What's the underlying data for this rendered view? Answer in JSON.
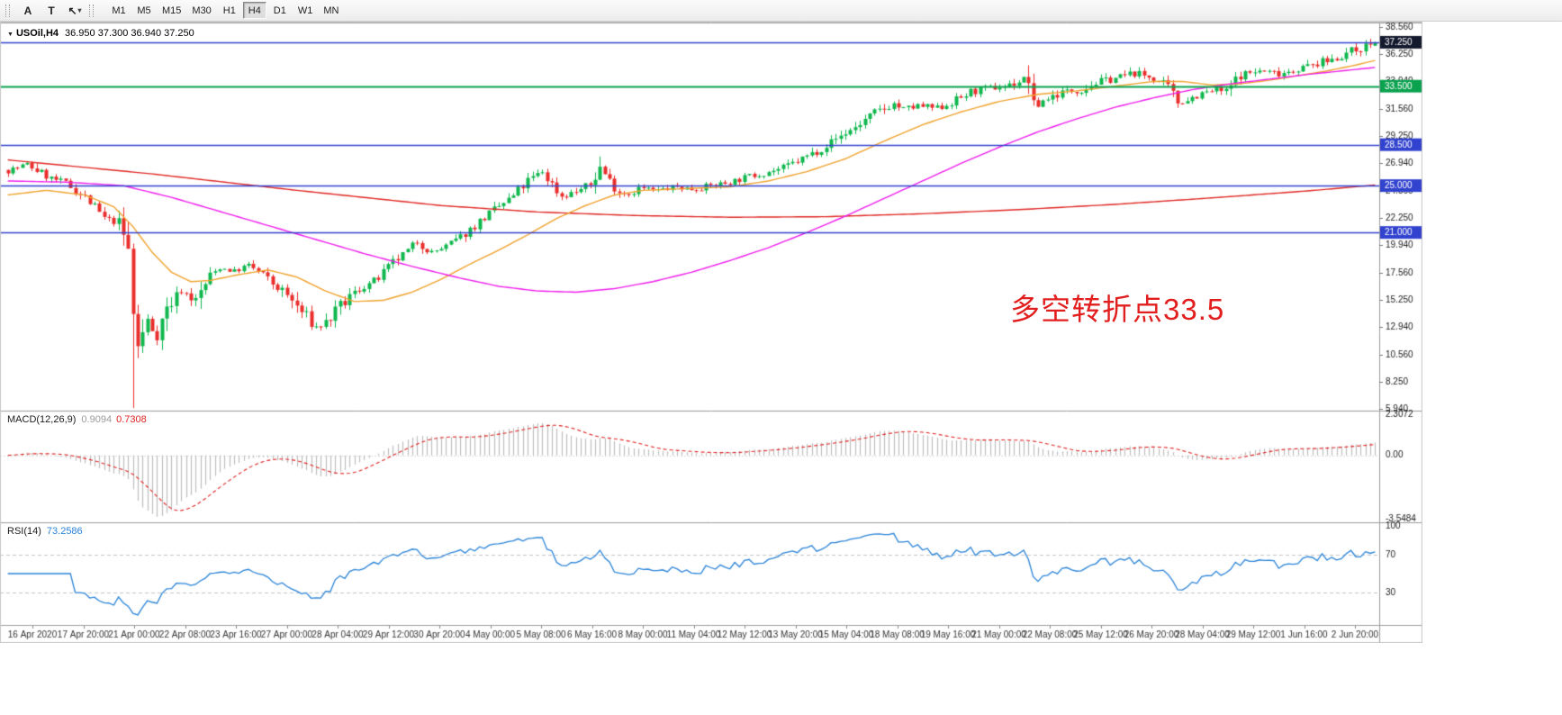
{
  "toolbar": {
    "tools": [
      {
        "label": "A"
      },
      {
        "label": "T"
      },
      {
        "label": "↖",
        "caret": "▾"
      }
    ],
    "timeframes": [
      {
        "label": "M1"
      },
      {
        "label": "M5"
      },
      {
        "label": "M15"
      },
      {
        "label": "M30"
      },
      {
        "label": "H1"
      },
      {
        "label": "H4",
        "active": true
      },
      {
        "label": "D1"
      },
      {
        "label": "W1"
      },
      {
        "label": "MN"
      }
    ]
  },
  "chart": {
    "symbol_dropdown_icon": "▼",
    "symbol_label": "USOil,H4",
    "ohlc_text": "36.950 37.300 36.940 37.250",
    "macd_label": {
      "name": "MACD(12,26,9)",
      "value": "0.9094",
      "signal": "0.7308"
    },
    "rsi_label": {
      "name": "RSI(14)",
      "value": "73.2586"
    },
    "annotation": {
      "text": "多空转折点33.5"
    }
  },
  "chart_data": {
    "type": "candlestick",
    "symbol": "USOil",
    "timeframe": "H4",
    "last_ohlc": {
      "open": 36.95,
      "high": 37.3,
      "low": 36.94,
      "close": 37.25
    },
    "price_axis": {
      "top_price": 38.86,
      "bottom_price": 5.78,
      "tick_labels": [
        "38.560",
        "36.250",
        "33.940",
        "31.560",
        "29.250",
        "26.940",
        "24.560",
        "22.250",
        "19.940",
        "17.560",
        "15.250",
        "12.940",
        "10.560",
        "8.250",
        "5.940"
      ]
    },
    "hlines": [
      {
        "price": 37.25,
        "label": "37.250",
        "line_color": "#3142cf",
        "badge_color": "#141a2e"
      },
      {
        "price": 33.5,
        "label": "33.500",
        "line_color": "#0ba24f",
        "badge_color": "#0ba24f",
        "width": 2
      },
      {
        "price": 28.5,
        "label": "28.500",
        "line_color": "#3142cf",
        "badge_color": "#3142cf"
      },
      {
        "price": 25.0,
        "label": "25.000",
        "line_color": "#3142cf",
        "badge_color": "#3142cf"
      },
      {
        "price": 21.0,
        "label": "21.000",
        "line_color": "#3142cf",
        "badge_color": "#3142cf"
      }
    ],
    "time_axis_labels": [
      "16 Apr 2020",
      "17 Apr 20:00",
      "21 Apr 00:00",
      "22 Apr 08:00",
      "23 Apr 16:00",
      "27 Apr 00:00",
      "28 Apr 04:00",
      "29 Apr 12:00",
      "30 Apr 20:00",
      "4 May 00:00",
      "5 May 08:00",
      "6 May 16:00",
      "8 May 00:00",
      "11 May 04:00",
      "12 May 12:00",
      "13 May 20:00",
      "15 May 04:00",
      "18 May 08:00",
      "19 May 16:00",
      "21 May 00:00",
      "22 May 08:00",
      "25 May 12:00",
      "26 May 20:00",
      "28 May 04:00",
      "29 May 12:00",
      "1 Jun 16:00",
      "2 Jun 20:00"
    ],
    "candles": {
      "count": 285,
      "seed": 7,
      "close_keypoints": [
        [
          0,
          26.3
        ],
        [
          4,
          26.8
        ],
        [
          9,
          25.6
        ],
        [
          12,
          25.2
        ],
        [
          16,
          24.0
        ],
        [
          20,
          22.2
        ],
        [
          23,
          21.8
        ],
        [
          25,
          19.5
        ],
        [
          26,
          14.0
        ],
        [
          27,
          11.2
        ],
        [
          29,
          13.5
        ],
        [
          31,
          12.2
        ],
        [
          33,
          14.5
        ],
        [
          36,
          16.0
        ],
        [
          39,
          15.2
        ],
        [
          42,
          17.3
        ],
        [
          44,
          18.0
        ],
        [
          47,
          17.7
        ],
        [
          50,
          18.2
        ],
        [
          53,
          17.4
        ],
        [
          55,
          16.6
        ],
        [
          58,
          15.6
        ],
        [
          61,
          14.2
        ],
        [
          64,
          12.9
        ],
        [
          66,
          13.3
        ],
        [
          69,
          14.6
        ],
        [
          71,
          15.5
        ],
        [
          74,
          16.4
        ],
        [
          77,
          17.1
        ],
        [
          80,
          18.4
        ],
        [
          83,
          19.4
        ],
        [
          85,
          20.2
        ],
        [
          88,
          19.3
        ],
        [
          91,
          19.8
        ],
        [
          94,
          20.6
        ],
        [
          97,
          21.6
        ],
        [
          99,
          22.3
        ],
        [
          102,
          23.2
        ],
        [
          105,
          24.1
        ],
        [
          108,
          25.4
        ],
        [
          111,
          26.2
        ],
        [
          113,
          25.1
        ],
        [
          115,
          24.1
        ],
        [
          118,
          24.5
        ],
        [
          121,
          25.1
        ],
        [
          123,
          26.6
        ],
        [
          125,
          25.4
        ],
        [
          127,
          24.5
        ],
        [
          129,
          24.3
        ],
        [
          131,
          24.8
        ],
        [
          135,
          24.6
        ],
        [
          139,
          24.9
        ],
        [
          142,
          24.7
        ],
        [
          146,
          25.0
        ],
        [
          150,
          25.3
        ],
        [
          154,
          25.8
        ],
        [
          157,
          26.1
        ],
        [
          161,
          26.5
        ],
        [
          165,
          27.3
        ],
        [
          169,
          28.2
        ],
        [
          172,
          29.0
        ],
        [
          176,
          30.0
        ],
        [
          180,
          31.2
        ],
        [
          184,
          32.0
        ],
        [
          186,
          31.5
        ],
        [
          189,
          31.8
        ],
        [
          193,
          31.6
        ],
        [
          197,
          32.3
        ],
        [
          200,
          33.0
        ],
        [
          204,
          33.3
        ],
        [
          208,
          33.6
        ],
        [
          212,
          34.2
        ],
        [
          213,
          31.5
        ],
        [
          215,
          32.3
        ],
        [
          219,
          33.0
        ],
        [
          223,
          33.2
        ],
        [
          226,
          33.8
        ],
        [
          230,
          34.2
        ],
        [
          234,
          34.6
        ],
        [
          238,
          34.2
        ],
        [
          241,
          33.3
        ],
        [
          243,
          32.1
        ],
        [
          247,
          32.7
        ],
        [
          251,
          33.2
        ],
        [
          253,
          33.0
        ],
        [
          256,
          34.5
        ],
        [
          260,
          34.8
        ],
        [
          264,
          34.6
        ],
        [
          267,
          34.9
        ],
        [
          271,
          35.3
        ],
        [
          275,
          35.8
        ],
        [
          278,
          36.3
        ],
        [
          281,
          36.8
        ],
        [
          284,
          37.25
        ]
      ],
      "special_wicks": [
        {
          "index": 26,
          "low": 6.0
        },
        {
          "index": 123,
          "high": 27.5
        }
      ]
    },
    "moving_averages": [
      {
        "name": "ma-slow-red",
        "color": "#e02722",
        "points": [
          [
            0,
            27.2
          ],
          [
            30,
            26.0
          ],
          [
            60,
            24.6
          ],
          [
            90,
            23.3
          ],
          [
            110,
            22.75
          ],
          [
            130,
            22.45
          ],
          [
            150,
            22.3
          ],
          [
            170,
            22.35
          ],
          [
            190,
            22.6
          ],
          [
            210,
            22.95
          ],
          [
            230,
            23.4
          ],
          [
            250,
            23.95
          ],
          [
            270,
            24.55
          ],
          [
            284,
            25.05
          ]
        ]
      },
      {
        "name": "ma-fast-orange",
        "color": "#f0a32e",
        "points": [
          [
            0,
            24.2
          ],
          [
            8,
            24.6
          ],
          [
            16,
            24.2
          ],
          [
            22,
            23.2
          ],
          [
            26,
            21.5
          ],
          [
            30,
            19.3
          ],
          [
            34,
            17.6
          ],
          [
            38,
            16.8
          ],
          [
            42,
            16.9
          ],
          [
            48,
            17.4
          ],
          [
            54,
            17.8
          ],
          [
            60,
            17.2
          ],
          [
            66,
            16.0
          ],
          [
            72,
            15.1
          ],
          [
            78,
            15.2
          ],
          [
            84,
            15.9
          ],
          [
            90,
            17.0
          ],
          [
            96,
            18.3
          ],
          [
            102,
            19.5
          ],
          [
            108,
            20.8
          ],
          [
            114,
            22.2
          ],
          [
            120,
            23.3
          ],
          [
            126,
            24.2
          ],
          [
            132,
            24.6
          ],
          [
            138,
            24.7
          ],
          [
            144,
            24.8
          ],
          [
            150,
            24.9
          ],
          [
            158,
            25.4
          ],
          [
            166,
            26.2
          ],
          [
            174,
            27.3
          ],
          [
            182,
            28.8
          ],
          [
            190,
            30.2
          ],
          [
            198,
            31.3
          ],
          [
            206,
            32.2
          ],
          [
            214,
            32.8
          ],
          [
            222,
            33.1
          ],
          [
            230,
            33.5
          ],
          [
            238,
            33.9
          ],
          [
            244,
            33.9
          ],
          [
            250,
            33.6
          ],
          [
            256,
            33.7
          ],
          [
            262,
            34.0
          ],
          [
            268,
            34.4
          ],
          [
            274,
            34.8
          ],
          [
            280,
            35.3
          ],
          [
            284,
            35.7
          ]
        ]
      },
      {
        "name": "ma-medium-magenta",
        "color": "#ef1fed",
        "points": [
          [
            0,
            25.4
          ],
          [
            12,
            25.3
          ],
          [
            24,
            25.0
          ],
          [
            34,
            24.0
          ],
          [
            44,
            22.8
          ],
          [
            54,
            21.6
          ],
          [
            64,
            20.4
          ],
          [
            74,
            19.2
          ],
          [
            84,
            18.1
          ],
          [
            94,
            17.1
          ],
          [
            102,
            16.4
          ],
          [
            110,
            16.0
          ],
          [
            118,
            15.9
          ],
          [
            126,
            16.2
          ],
          [
            134,
            16.8
          ],
          [
            142,
            17.6
          ],
          [
            150,
            18.6
          ],
          [
            158,
            19.7
          ],
          [
            166,
            21.0
          ],
          [
            174,
            22.4
          ],
          [
            182,
            23.9
          ],
          [
            190,
            25.4
          ],
          [
            198,
            26.9
          ],
          [
            206,
            28.3
          ],
          [
            214,
            29.6
          ],
          [
            222,
            30.7
          ],
          [
            230,
            31.7
          ],
          [
            238,
            32.5
          ],
          [
            246,
            33.2
          ],
          [
            254,
            33.7
          ],
          [
            262,
            34.1
          ],
          [
            270,
            34.5
          ],
          [
            277,
            34.8
          ],
          [
            284,
            35.1
          ]
        ]
      }
    ],
    "macd": {
      "params": "12,26,9",
      "value": 0.9094,
      "signal_value": 0.7308,
      "axis": {
        "max": 2.3072,
        "min": -3.5484,
        "labels": [
          {
            "text": "2.3072",
            "value": 2.3072
          },
          {
            "text": "0.00",
            "value": 0
          },
          {
            "text": "-3.5484",
            "value": -3.5484
          }
        ]
      },
      "histogram_color": "#bdbdbd",
      "signal_color": "#df2321"
    },
    "rsi": {
      "period": 14,
      "value": 73.2586,
      "levels": [
        70,
        30
      ],
      "axis_labels": [
        {
          "text": "100",
          "value": 100
        },
        {
          "text": "70",
          "value": 70
        },
        {
          "text": "30",
          "value": 30
        }
      ],
      "line_color": "#2a84d8"
    },
    "colors": {
      "bull": "#10b84e",
      "bear": "#ea2e2c",
      "background": "#ffffff",
      "border": "#9c9c9c",
      "axis_text": "#1b1b1b"
    }
  }
}
